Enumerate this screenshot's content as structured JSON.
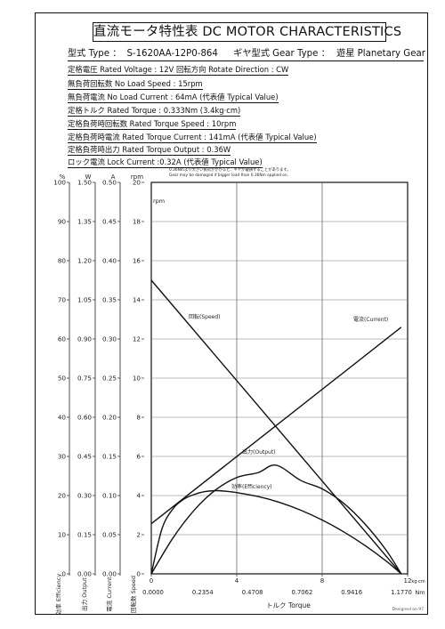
{
  "title": "直流モータ特性表 DC MOTOR CHARACTERISTICS",
  "type_line": {
    "type_label": "型式 Type ：",
    "model": "S-1620AA-12P0-864",
    "gear_label": "ギヤ型式 Gear Type ：",
    "gear_value": "遊星  Planetary Gear"
  },
  "specs": [
    "定格電圧 Rated Voltage : 12V   回転方向 Rotate Direction : CW",
    "無負荷回転数 No Load Speed : 15rpm",
    "無負荷電流 No Load Current : 64mA (代表値 Typical Value)",
    "定格トルク Rated Torque : 0.333Nm (3.4kg·cm)",
    "定格負荷時回転数 Rated Torque Speed : 10rpm",
    "定格負荷時電流 Rated Torque Current : 141mA (代表値 Typical Value)",
    "定格負荷時出力 Rated Torque Output : 0.36W",
    "ロック電流 Lock Current :0.32A (代表値 Typical Value)"
  ],
  "warning": [
    "0.36Nmより大きい負荷がかかると、ギヤが破損することがあります。",
    "Gear may be damaged if bigger load than 0.36Nm applied on."
  ],
  "footer_signature": "Designed on 97",
  "chart_data": {
    "type": "line",
    "x_axis": {
      "label": "トルク Torque",
      "unit_primary": "kg·cm",
      "unit_secondary": "Nm",
      "range": [
        0,
        12
      ],
      "ticks_kgcm": [
        "0",
        "4",
        "8",
        "12"
      ],
      "ticks_nm": [
        "0.0000",
        "0.2354",
        "0.4708",
        "0.7062",
        "0.9416",
        "1.1770"
      ]
    },
    "left_axes": [
      {
        "unit": "%",
        "label": "効率 Efficiency",
        "ticks": [
          "100",
          "90",
          "80",
          "70",
          "60",
          "50",
          "40",
          "30",
          "20",
          "10",
          "0"
        ]
      },
      {
        "unit": "W",
        "label": "出力 Output",
        "ticks": [
          "1.50",
          "1.35",
          "1.20",
          "1.05",
          "0.90",
          "0.75",
          "0.60",
          "0.45",
          "0.30",
          "0.15",
          "0.00"
        ]
      },
      {
        "unit": "A",
        "label": "電流 Current",
        "ticks": [
          "0.50",
          "0.45",
          "0.40",
          "0.35",
          "0.30",
          "0.25",
          "0.20",
          "0.15",
          "0.10",
          "0.05",
          "0.00"
        ]
      },
      {
        "unit": "rpm",
        "label": "回転数 Speed",
        "ticks": [
          "20",
          "18",
          "16",
          "14",
          "12",
          "10",
          "8",
          "6",
          "4",
          "2",
          "0"
        ]
      }
    ],
    "y_range": [
      0,
      20
    ],
    "grid": true,
    "series": [
      {
        "name": "回転(Speed)",
        "x": [
          0,
          11.7
        ],
        "y": [
          15,
          0
        ]
      },
      {
        "name": "電流(Current)",
        "x": [
          0,
          11.7
        ],
        "y": [
          2.56,
          12.6
        ]
      },
      {
        "name": "出力(Output)",
        "x": [
          0,
          1,
          2,
          3,
          4,
          5,
          5.85,
          7,
          8,
          9,
          10,
          11,
          11.7
        ],
        "y": [
          0,
          1.81,
          3.24,
          4.28,
          4.92,
          5.17,
          5.55,
          4.77,
          4.34,
          3.61,
          2.55,
          1.2,
          0
        ]
      },
      {
        "name": "効率(Efficiency)",
        "x": [
          0,
          0.5,
          1,
          1.5,
          2,
          2.5,
          3,
          3.5,
          4,
          5,
          6,
          7,
          8,
          9,
          10,
          11,
          11.7
        ],
        "y": [
          0,
          2.3,
          3.3,
          3.8,
          4.05,
          4.2,
          4.25,
          4.22,
          4.15,
          3.95,
          3.65,
          3.25,
          2.75,
          2.15,
          1.45,
          0.65,
          0
        ]
      }
    ]
  }
}
